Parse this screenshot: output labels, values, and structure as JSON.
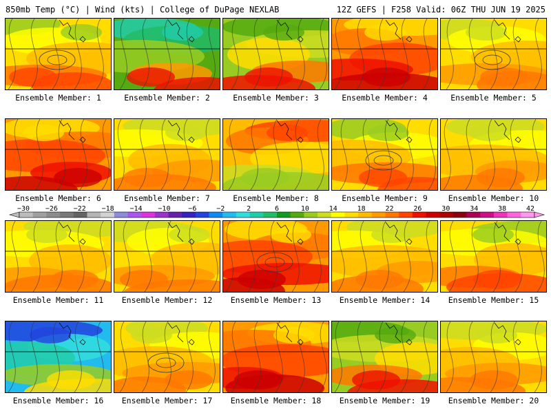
{
  "header": {
    "left": "850mb Temp (°C) | Wind (kts) | College of DuPage NEXLAB",
    "right": "12Z GEFS | F258 Valid: 06Z THU JUN 19 2025"
  },
  "colorbar": {
    "ticks": [
      "−30",
      "−26",
      "−22",
      "−18",
      "−14",
      "−10",
      "−6",
      "−2",
      "2",
      "6",
      "10",
      "14",
      "18",
      "22",
      "26",
      "30",
      "34",
      "38",
      "42"
    ],
    "colors": [
      "#bcbcbc",
      "#a0a0a0",
      "#8c8c8c",
      "#787878",
      "#646464",
      "#b4b4b4",
      "#d2d2d2",
      "#8c8cd8",
      "#aa55ee",
      "#dd33dd",
      "#9933cc",
      "#6622aa",
      "#3322bb",
      "#2244dd",
      "#1188ee",
      "#22bbee",
      "#33dddd",
      "#22ccaa",
      "#22bb66",
      "#119922",
      "#55aa11",
      "#99cc22",
      "#ccdd22",
      "#ffff00",
      "#ffdd00",
      "#ffbb00",
      "#ff9900",
      "#ff7700",
      "#ff4400",
      "#ee1100",
      "#cc0000",
      "#aa0000",
      "#880011",
      "#aa0055",
      "#cc1188",
      "#ee33bb",
      "#ff66dd",
      "#ff99ee"
    ]
  },
  "members": [
    {
      "label": "Ensemble Member: 1",
      "theme": "mixed"
    },
    {
      "label": "Ensemble Member: 2",
      "theme": "cool"
    },
    {
      "label": "Ensemble Member: 3",
      "theme": "green"
    },
    {
      "label": "Ensemble Member: 4",
      "theme": "hot"
    },
    {
      "label": "Ensemble Member: 5",
      "theme": "warm"
    },
    {
      "label": "Ensemble Member: 6",
      "theme": "hot"
    },
    {
      "label": "Ensemble Member: 7",
      "theme": "warm"
    },
    {
      "label": "Ensemble Member: 8",
      "theme": "hotwest"
    },
    {
      "label": "Ensemble Member: 9",
      "theme": "mixed"
    },
    {
      "label": "Ensemble Member: 10",
      "theme": "warm"
    },
    {
      "label": "Ensemble Member: 11",
      "theme": "warm"
    },
    {
      "label": "Ensemble Member: 12",
      "theme": "warm"
    },
    {
      "label": "Ensemble Member: 13",
      "theme": "hot"
    },
    {
      "label": "Ensemble Member: 14",
      "theme": "warm"
    },
    {
      "label": "Ensemble Member: 15",
      "theme": "mixed"
    },
    {
      "label": "Ensemble Member: 16",
      "theme": "cold"
    },
    {
      "label": "Ensemble Member: 17",
      "theme": "warm"
    },
    {
      "label": "Ensemble Member: 18",
      "theme": "hot"
    },
    {
      "label": "Ensemble Member: 19",
      "theme": "green"
    },
    {
      "label": "Ensemble Member: 20",
      "theme": "warm"
    }
  ]
}
